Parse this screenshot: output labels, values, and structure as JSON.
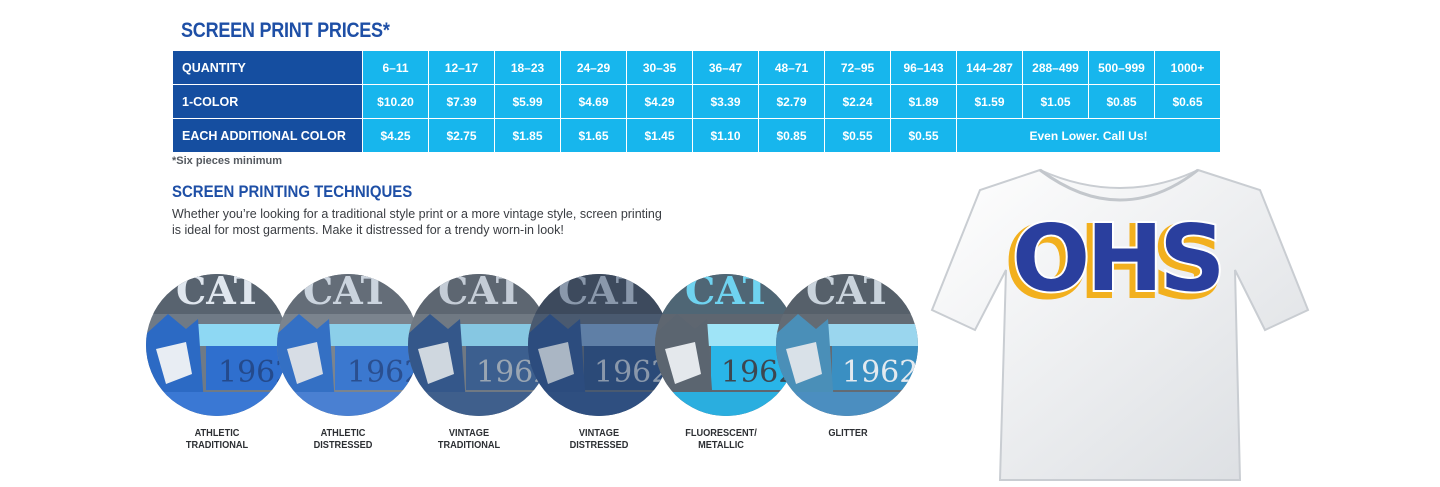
{
  "title": "SCREEN PRINT PRICES*",
  "table": {
    "header_label": "QUANTITY",
    "quantities": [
      "6–11",
      "12–17",
      "18–23",
      "24–29",
      "30–35",
      "36–47",
      "48–71",
      "72–95",
      "96–143",
      "144–287",
      "288–499",
      "500–999",
      "1000+"
    ],
    "row1_label": "1-COLOR",
    "row1_values": [
      "$10.20",
      "$7.39",
      "$5.99",
      "$4.69",
      "$4.29",
      "$3.39",
      "$2.79",
      "$2.24",
      "$1.89",
      "$1.59",
      "$1.05",
      "$0.85",
      "$0.65"
    ],
    "row2_label": "EACH ADDITIONAL COLOR",
    "row2_values": [
      "$4.25",
      "$2.75",
      "$1.85",
      "$1.65",
      "$1.45",
      "$1.10",
      "$0.85",
      "$0.55",
      "$0.55"
    ],
    "row2_note": "Even Lower. Call Us!"
  },
  "footnote": "*Six pieces minimum",
  "techniques": {
    "heading": "SCREEN PRINTING TECHNIQUES",
    "description": "Whether you’re looking for a traditional style print or a more vintage style, screen printing is ideal for most garments. Make it distressed for a trendy worn-in look!",
    "swatch_text": "1962",
    "items": [
      {
        "line1": "ATHLETIC",
        "line2": "TRADITIONAL"
      },
      {
        "line1": "ATHLETIC",
        "line2": "DISTRESSED"
      },
      {
        "line1": "VINTAGE",
        "line2": "TRADITIONAL"
      },
      {
        "line1": "VINTAGE",
        "line2": "DISTRESSED"
      },
      {
        "line1": "FLUORESCENT/",
        "line2": "METALLIC"
      },
      {
        "line1": "GLITTER",
        "line2": ""
      }
    ]
  },
  "shirt": {
    "lettering": "OHS"
  },
  "colors": {
    "navy": "#154ea0",
    "cyan": "#17b6ed",
    "heading_blue": "#1e4fa6",
    "gold": "#f2b01e",
    "royal": "#2a3f9e"
  }
}
